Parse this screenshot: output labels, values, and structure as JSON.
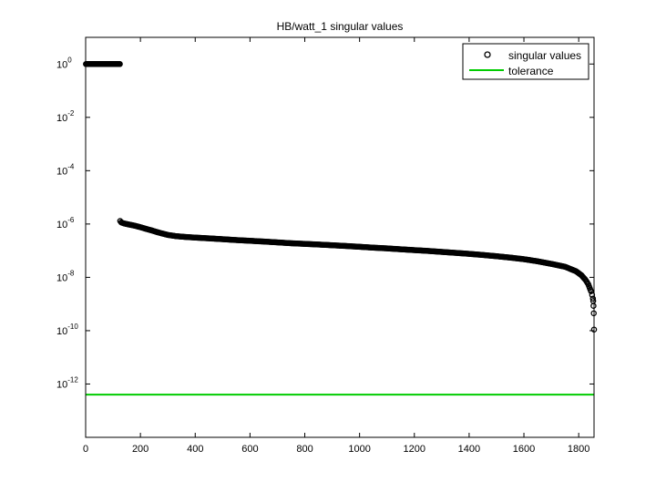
{
  "chart_data": {
    "type": "scatter",
    "title": "HB/watt_1 singular values",
    "xlabel": "",
    "ylabel": "",
    "x_ticks": [
      0,
      200,
      400,
      600,
      800,
      1000,
      1200,
      1400,
      1600,
      1800
    ],
    "y_tick_exponents": [
      0,
      -2,
      -4,
      -6,
      -8,
      -10,
      -12
    ],
    "y_scale": "log",
    "xlim": [
      0,
      1856
    ],
    "ylim": [
      1e-14,
      10
    ],
    "legend_position": "top-right",
    "series": [
      {
        "name": "singular values",
        "marker": "circle",
        "color": "#000000",
        "points": [
          [
            1,
            1
          ],
          [
            30,
            1
          ],
          [
            60,
            1
          ],
          [
            90,
            1
          ],
          [
            110,
            1
          ],
          [
            125,
            1
          ],
          [
            126,
            1.3e-06
          ],
          [
            130,
            1.15e-06
          ],
          [
            140,
            1.05e-06
          ],
          [
            160,
            9.5e-07
          ],
          [
            180,
            8.6e-07
          ],
          [
            200,
            7.6e-07
          ],
          [
            220,
            6.6e-07
          ],
          [
            240,
            5.8e-07
          ],
          [
            260,
            5e-07
          ],
          [
            280,
            4.4e-07
          ],
          [
            300,
            3.9e-07
          ],
          [
            330,
            3.5e-07
          ],
          [
            360,
            3.3e-07
          ],
          [
            400,
            3.1e-07
          ],
          [
            450,
            2.9e-07
          ],
          [
            500,
            2.7e-07
          ],
          [
            550,
            2.5e-07
          ],
          [
            600,
            2.35e-07
          ],
          [
            650,
            2.2e-07
          ],
          [
            700,
            2.05e-07
          ],
          [
            750,
            1.9e-07
          ],
          [
            800,
            1.8e-07
          ],
          [
            850,
            1.7e-07
          ],
          [
            900,
            1.6e-07
          ],
          [
            950,
            1.5e-07
          ],
          [
            1000,
            1.4e-07
          ],
          [
            1050,
            1.3e-07
          ],
          [
            1100,
            1.22e-07
          ],
          [
            1150,
            1.13e-07
          ],
          [
            1200,
            1.05e-07
          ],
          [
            1250,
            9.8e-08
          ],
          [
            1300,
            9e-08
          ],
          [
            1350,
            8.3e-08
          ],
          [
            1400,
            7.6e-08
          ],
          [
            1450,
            6.9e-08
          ],
          [
            1500,
            6.2e-08
          ],
          [
            1550,
            5.5e-08
          ],
          [
            1600,
            4.8e-08
          ],
          [
            1650,
            4e-08
          ],
          [
            1700,
            3.2e-08
          ],
          [
            1750,
            2.5e-08
          ],
          [
            1790,
            1.7e-08
          ],
          [
            1810,
            1.2e-08
          ],
          [
            1825,
            8e-09
          ],
          [
            1835,
            5.5e-09
          ],
          [
            1840,
            4e-09
          ],
          [
            1845,
            3e-09
          ],
          [
            1849,
            2.2e-09
          ],
          [
            1852,
            1.6e-09
          ],
          [
            1853,
            1.3e-09
          ],
          [
            1854,
            8.5e-10
          ],
          [
            1855,
            4.5e-10
          ],
          [
            1856,
            1.1e-10
          ]
        ]
      },
      {
        "name": "tolerance",
        "type": "line",
        "color": "#00cc00",
        "y": 4e-13
      }
    ]
  }
}
